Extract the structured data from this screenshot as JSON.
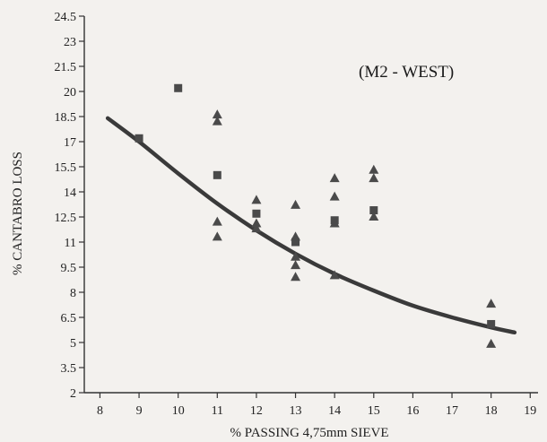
{
  "chart_data": {
    "type": "scatter",
    "title": "",
    "annotation": "(M2 - WEST)",
    "xlabel": "% PASSING 4,75mm SIEVE",
    "ylabel": "% CANTABRO LOSS",
    "xlim": [
      7.6,
      19.2
    ],
    "ylim": [
      2,
      24.5
    ],
    "x_ticks": [
      "8",
      "9",
      "10",
      "11",
      "12",
      "13",
      "14",
      "15",
      "16",
      "17",
      "18",
      "19"
    ],
    "y_ticks": [
      "2",
      "3.5",
      "5",
      "6.5",
      "8",
      "9.5",
      "11",
      "12.5",
      "14",
      "15.5",
      "17",
      "18.5",
      "20",
      "21.5",
      "23",
      "24.5"
    ],
    "grid": false,
    "colors": {
      "marker": "#4a4a4a",
      "curve": "#3a3a3a"
    },
    "series": [
      {
        "marker": "square",
        "points": [
          [
            9,
            17.2
          ],
          [
            10,
            20.2
          ],
          [
            11,
            15.0
          ],
          [
            12,
            12.7
          ],
          [
            13,
            11.0
          ],
          [
            14,
            12.3
          ],
          [
            15,
            12.9
          ],
          [
            18,
            6.1
          ]
        ]
      },
      {
        "marker": "triangle",
        "points": [
          [
            11,
            18.6
          ],
          [
            11,
            18.2
          ],
          [
            11,
            12.2
          ],
          [
            11,
            11.3
          ],
          [
            12,
            13.5
          ],
          [
            12,
            12.1
          ],
          [
            12,
            11.8
          ],
          [
            13,
            13.2
          ],
          [
            13,
            11.3
          ],
          [
            13,
            10.1
          ],
          [
            13,
            9.6
          ],
          [
            13,
            8.9
          ],
          [
            14,
            14.8
          ],
          [
            14,
            13.7
          ],
          [
            14,
            12.1
          ],
          [
            14,
            9.0
          ],
          [
            15,
            15.3
          ],
          [
            15,
            14.8
          ],
          [
            15,
            12.5
          ],
          [
            18,
            7.3
          ],
          [
            18,
            4.9
          ]
        ]
      },
      {
        "type": "line",
        "style": "fitted-curve",
        "points": [
          [
            8.2,
            18.4
          ],
          [
            9.0,
            17.0
          ],
          [
            10.0,
            15.1
          ],
          [
            11.0,
            13.3
          ],
          [
            12.0,
            11.7
          ],
          [
            13.0,
            10.3
          ],
          [
            14.0,
            9.1
          ],
          [
            15.0,
            8.1
          ],
          [
            16.0,
            7.2
          ],
          [
            17.0,
            6.5
          ],
          [
            18.0,
            5.9
          ],
          [
            18.6,
            5.6
          ]
        ]
      }
    ]
  }
}
